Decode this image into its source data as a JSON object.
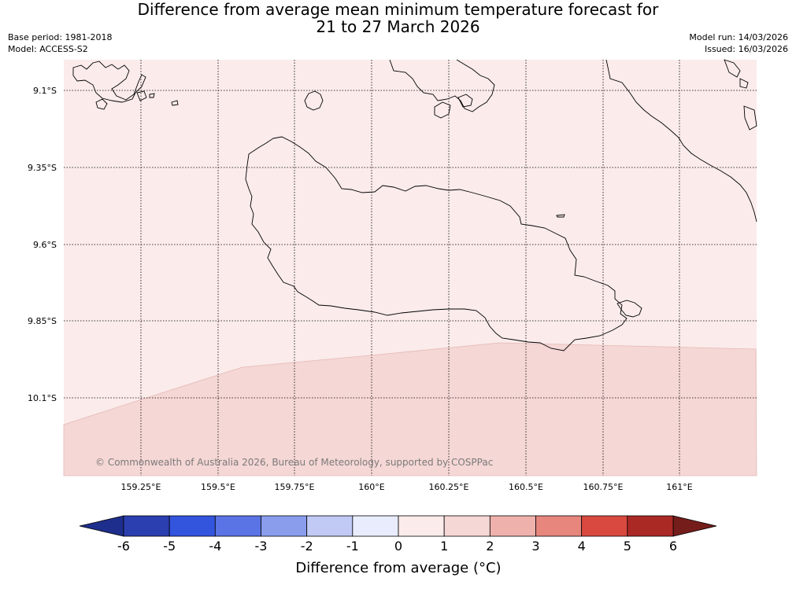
{
  "header": {
    "title_line1": "Difference from average mean minimum temperature forecast for",
    "title_line2": "21 to 27 March 2026",
    "base_period": "Base period: 1981-2018",
    "model": "Model: ACCESS-S2",
    "model_run": "Model run: 14/03/2026",
    "issued": "Issued: 16/03/2026"
  },
  "map": {
    "lat_labels": [
      "9.1°S",
      "9.35°S",
      "9.6°S",
      "9.85°S",
      "10.1°S"
    ],
    "lon_labels": [
      "159.25°E",
      "159.5°E",
      "159.75°E",
      "160°E",
      "160.25°E",
      "160.5°E",
      "160.75°E",
      "161°E"
    ],
    "copyright": "© Commonwealth of Australia 2026, Bureau of Meteorology, supported by COSPPac",
    "zones": [
      {
        "range": "0 to 1",
        "color": "#fbebeb"
      },
      {
        "range": "1 to 2",
        "color": "#f5d7d5"
      }
    ]
  },
  "colorbar": {
    "title": "Difference from average (°C)",
    "tick_labels": [
      "-6",
      "-5",
      "-4",
      "-3",
      "-2",
      "-1",
      "0",
      "1",
      "2",
      "3",
      "4",
      "5",
      "6"
    ],
    "colors": [
      "#1e2e8c",
      "#2b3fb0",
      "#3355de",
      "#5a74e6",
      "#8a9ded",
      "#c1c9f5",
      "#e9ecfc",
      "#fbebeb",
      "#f5d7d5",
      "#eeb1ac",
      "#e6867d",
      "#d9493f",
      "#ab2924",
      "#741d1b"
    ]
  }
}
